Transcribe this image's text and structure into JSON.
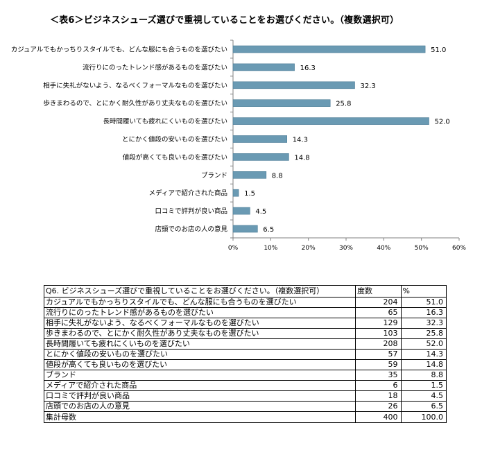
{
  "title": "＜表6＞ビジネスシューズ選びで重視していることをお選びください。（複数選択可）",
  "chart_data": {
    "type": "bar",
    "orientation": "horizontal",
    "categories": [
      "カジュアルでもかっちりスタイルでも、どんな服にも合うものを選びたい",
      "流行りにのったトレンド感があるものを選びたい",
      "相手に失礼がないよう、なるべくフォーマルなものを選びたい",
      "歩きまわるので、とにかく耐久性があり丈夫なものを選びたい",
      "長時間履いても疲れにくいものを選びたい",
      "とにかく値段の安いものを選びたい",
      "値段が高くても良いものを選びたい",
      "ブランド",
      "メディアで紹介された商品",
      "口コミで評判が良い商品",
      "店頭でのお店の人の意見"
    ],
    "values": [
      51.0,
      16.3,
      32.3,
      25.8,
      52.0,
      14.3,
      14.8,
      8.8,
      1.5,
      4.5,
      6.5
    ],
    "value_labels": [
      "51.0",
      "16.3",
      "32.3",
      "25.8",
      "52.0",
      "14.3",
      "14.8",
      "8.8",
      "1.5",
      "4.5",
      "6.5"
    ],
    "xlim": [
      0,
      60
    ],
    "x_ticks": [
      "0%",
      "10%",
      "20%",
      "30%",
      "40%",
      "50%",
      "60%"
    ],
    "bar_color": "#6a9ab3",
    "bar_border_color": "#4d7e98",
    "grid": false,
    "legend": "none"
  },
  "table": {
    "header": {
      "question": "Q6. ビジネスシューズ選びで重視していることをお選びください。（複数選択可）",
      "count": "度数",
      "percent": "%"
    },
    "rows": [
      {
        "label": "カジュアルでもかっちりスタイルでも、どんな服にも合うものを選びたい",
        "count": "204",
        "percent": "51.0"
      },
      {
        "label": "流行りにのったトレンド感があるものを選びたい",
        "count": "65",
        "percent": "16.3"
      },
      {
        "label": "相手に失礼がないよう、なるべくフォーマルなものを選びたい",
        "count": "129",
        "percent": "32.3"
      },
      {
        "label": "歩きまわるので、とにかく耐久性があり丈夫なものを選びたい",
        "count": "103",
        "percent": "25.8"
      },
      {
        "label": "長時間履いても疲れにくいものを選びたい",
        "count": "208",
        "percent": "52.0"
      },
      {
        "label": "とにかく値段の安いものを選びたい",
        "count": "57",
        "percent": "14.3"
      },
      {
        "label": "値段が高くても良いものを選びたい",
        "count": "59",
        "percent": "14.8"
      },
      {
        "label": "ブランド",
        "count": "35",
        "percent": "8.8"
      },
      {
        "label": "メディアで紹介された商品",
        "count": "6",
        "percent": "1.5"
      },
      {
        "label": "口コミで評判が良い商品",
        "count": "18",
        "percent": "4.5"
      },
      {
        "label": "店頭でのお店の人の意見",
        "count": "26",
        "percent": "6.5"
      }
    ],
    "total": {
      "label": "集計母数",
      "count": "400",
      "percent": "100.0"
    }
  }
}
